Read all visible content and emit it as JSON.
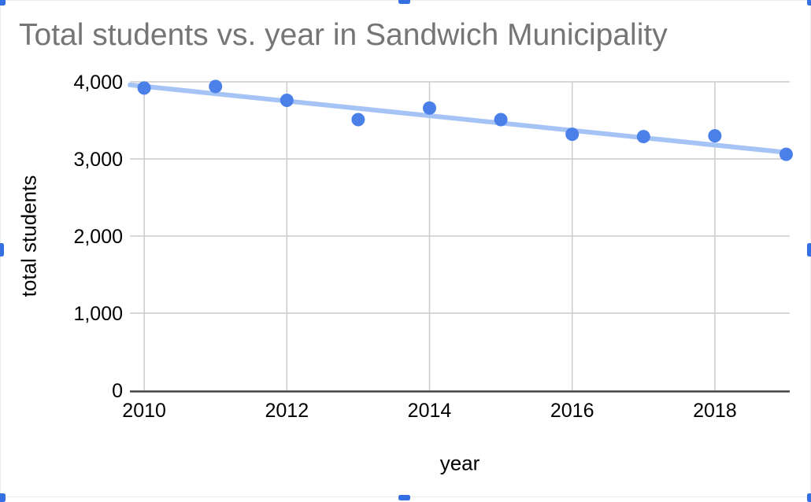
{
  "chart_data": {
    "type": "scatter",
    "title": "Total students vs. year in Sandwich Municipality",
    "xlabel": "year",
    "ylabel": "total students",
    "x": [
      2010,
      2011,
      2012,
      2013,
      2014,
      2015,
      2016,
      2017,
      2018,
      2019
    ],
    "series": [
      {
        "name": "total students",
        "values": [
          3920,
          3940,
          3760,
          3510,
          3660,
          3510,
          3320,
          3290,
          3300,
          3060
        ]
      }
    ],
    "trendline": {
      "x_start": 2009.8,
      "y_start": 3960,
      "x_end": 2019.05,
      "y_end": 3080
    },
    "xlim": [
      2009.8,
      2019.05
    ],
    "ylim": [
      0,
      4000
    ],
    "x_ticks": [
      2010,
      2012,
      2014,
      2016,
      2018
    ],
    "x_tick_labels": [
      "2010",
      "2012",
      "2014",
      "2016",
      "2018"
    ],
    "y_ticks": [
      0,
      1000,
      2000,
      3000,
      4000
    ],
    "y_tick_labels": [
      "0",
      "1,000",
      "2,000",
      "3,000",
      "4,000"
    ],
    "grid": true,
    "legend": "none",
    "colors": {
      "point": "#4b80e9",
      "trendline": "#a5c4f5",
      "gridline": "#cccccc",
      "axis_line": "#424242",
      "title_text": "#757575",
      "tick_text": "#000000",
      "axis_title_text": "#000000"
    }
  },
  "selection_handles": {
    "color": "#3470e3",
    "positions": [
      "top-left",
      "top-center",
      "top-right",
      "middle-left",
      "middle-right",
      "bottom-left",
      "bottom-center",
      "bottom-right"
    ]
  }
}
